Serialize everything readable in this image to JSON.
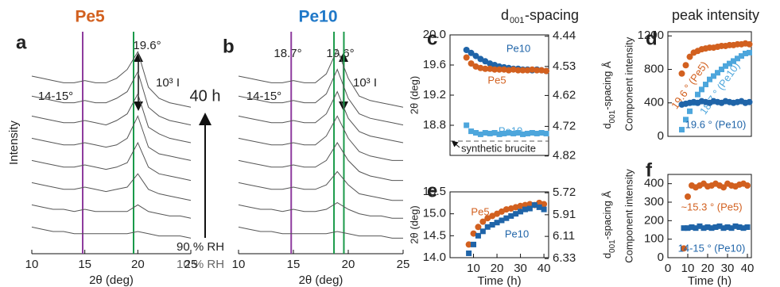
{
  "headers": {
    "d_main": "d",
    "d_sub": "001",
    "d_rest": "-spacing",
    "peak": "peak intensity"
  },
  "time_arrow": {
    "top": "40 h",
    "start": "90 % RH",
    "baseline": "10 % RH"
  },
  "chart_data": [
    {
      "type": "line",
      "panel_label": "a",
      "title": "Pe5",
      "title_color": "#d2601f",
      "xlabel": "2θ (deg)",
      "ylabel": "Intensity",
      "x": [
        10,
        11,
        12,
        13,
        14,
        15,
        16,
        17,
        18,
        19,
        20,
        21,
        22,
        23,
        24,
        25
      ],
      "xlim": [
        10,
        25
      ],
      "xticks": [
        10,
        15,
        20,
        25
      ],
      "ylim": [
        0,
        100
      ],
      "vlines": [
        {
          "x": 14.8,
          "color": "#8e3c9e"
        },
        {
          "x": 19.6,
          "color": "#1a9a4a"
        }
      ],
      "annotations": [
        "14-15°",
        "19.6°",
        "10³ I"
      ],
      "series": [
        {
          "color": "#555555",
          "values": [
            12,
            11,
            10,
            10,
            9,
            9,
            9,
            9,
            9,
            9,
            10,
            9,
            8,
            8,
            8,
            7
          ]
        },
        {
          "color": "#555555",
          "values": [
            22,
            21,
            20,
            20,
            19,
            20,
            19,
            19,
            19,
            19,
            22,
            19,
            18,
            17,
            17,
            16
          ]
        },
        {
          "color": "#555555",
          "values": [
            32,
            31,
            30,
            29,
            29,
            30,
            29,
            28,
            29,
            30,
            36,
            29,
            27,
            26,
            25,
            24
          ]
        },
        {
          "color": "#555555",
          "values": [
            42,
            41,
            40,
            39,
            39,
            40,
            39,
            38,
            39,
            41,
            50,
            39,
            36,
            35,
            34,
            33
          ]
        },
        {
          "color": "#555555",
          "values": [
            52,
            51,
            50,
            49,
            49,
            50,
            49,
            48,
            49,
            52,
            62,
            48,
            45,
            44,
            43,
            42
          ]
        },
        {
          "color": "#555555",
          "values": [
            62,
            61,
            60,
            59,
            59,
            60,
            59,
            58,
            60,
            63,
            72,
            57,
            54,
            52,
            51,
            50
          ]
        },
        {
          "color": "#555555",
          "values": [
            71,
            70,
            69,
            68,
            68,
            69,
            68,
            68,
            70,
            73,
            82,
            66,
            62,
            60,
            59,
            58
          ]
        },
        {
          "color": "#555555",
          "values": [
            80,
            79,
            78,
            77,
            77,
            78,
            77,
            77,
            79,
            83,
            91,
            75,
            70,
            68,
            67,
            66
          ]
        }
      ]
    },
    {
      "type": "line",
      "panel_label": "b",
      "title": "Pe10",
      "title_color": "#1f78c8",
      "xlabel": "2θ (deg)",
      "x": [
        10,
        11,
        12,
        13,
        14,
        15,
        16,
        17,
        18,
        19,
        20,
        21,
        22,
        23,
        24,
        25
      ],
      "xlim": [
        10,
        25
      ],
      "xticks": [
        10,
        15,
        20,
        25
      ],
      "ylim": [
        0,
        100
      ],
      "vlines": [
        {
          "x": 14.8,
          "color": "#8e3c9e"
        },
        {
          "x": 18.7,
          "color": "#1a9a4a"
        },
        {
          "x": 19.6,
          "color": "#1a9a4a"
        }
      ],
      "annotations": [
        "14-15°",
        "18.7°",
        "19.6°",
        "10³ I"
      ],
      "series": [
        {
          "color": "#555555",
          "values": [
            12,
            11,
            10,
            10,
            9,
            9,
            9,
            9,
            9,
            10,
            9,
            8,
            8,
            8,
            7,
            7
          ]
        },
        {
          "color": "#555555",
          "values": [
            22,
            21,
            20,
            20,
            19,
            20,
            19,
            19,
            20,
            23,
            20,
            18,
            17,
            17,
            16,
            16
          ]
        },
        {
          "color": "#555555",
          "values": [
            32,
            31,
            30,
            29,
            29,
            30,
            29,
            29,
            31,
            37,
            31,
            27,
            26,
            25,
            24,
            24
          ]
        },
        {
          "color": "#555555",
          "values": [
            42,
            41,
            40,
            39,
            39,
            40,
            39,
            39,
            42,
            50,
            42,
            37,
            35,
            34,
            33,
            33
          ]
        },
        {
          "color": "#555555",
          "values": [
            52,
            51,
            50,
            49,
            49,
            50,
            49,
            49,
            53,
            62,
            52,
            46,
            44,
            43,
            42,
            42
          ]
        },
        {
          "color": "#555555",
          "values": [
            62,
            61,
            60,
            59,
            59,
            60,
            59,
            59,
            63,
            73,
            61,
            55,
            53,
            52,
            51,
            50
          ]
        },
        {
          "color": "#555555",
          "values": [
            71,
            70,
            69,
            68,
            68,
            69,
            68,
            68,
            72,
            83,
            70,
            63,
            61,
            60,
            59,
            58
          ]
        },
        {
          "color": "#555555",
          "values": [
            80,
            79,
            78,
            77,
            77,
            78,
            77,
            77,
            81,
            92,
            79,
            71,
            69,
            68,
            67,
            66
          ]
        }
      ]
    },
    {
      "type": "scatter",
      "panel_label": "c",
      "ylabel": "2θ (deg)",
      "y2label": {
        "main": "d",
        "sub": "001",
        "rest": "-spacing Å"
      },
      "y2scale": "d-spacing",
      "xlim": [
        0,
        42
      ],
      "ylim": [
        18.4,
        20.0
      ],
      "yticks": [
        18.8,
        19.2,
        19.6,
        {
          "value": 20,
          "label": "20.0"
        }
      ],
      "y2ticks": [
        4.44,
        4.53,
        4.62,
        4.72,
        4.82
      ],
      "hline": {
        "value": 18.59,
        "label": "synthetic brucite"
      },
      "x": [
        7,
        9,
        11,
        13,
        15,
        17,
        19,
        21,
        23,
        25,
        27,
        29,
        31,
        33,
        35,
        37,
        39,
        41
      ],
      "series": [
        {
          "name": "Pe10",
          "color": "#1f64a8",
          "marker": "circle",
          "values": [
            19.8,
            19.76,
            19.72,
            19.68,
            19.65,
            19.62,
            19.6,
            19.58,
            19.57,
            19.56,
            19.55,
            19.55,
            19.54,
            19.54,
            19.53,
            19.54,
            19.53,
            19.52
          ]
        },
        {
          "name": "Pe5",
          "color": "#d2601f",
          "marker": "circle",
          "values": [
            19.7,
            19.62,
            19.58,
            19.56,
            19.55,
            19.55,
            19.54,
            19.54,
            19.54,
            19.53,
            19.54,
            19.53,
            19.53,
            19.53,
            19.54,
            19.53,
            19.53,
            19.52
          ]
        },
        {
          "name": "Pe10",
          "color": "#4da6dc",
          "marker": "square",
          "values": [
            18.8,
            18.72,
            18.7,
            18.68,
            18.7,
            18.69,
            18.7,
            18.68,
            18.69,
            18.7,
            18.69,
            18.7,
            18.68,
            18.69,
            18.7,
            18.69,
            18.7,
            18.69
          ]
        }
      ]
    },
    {
      "type": "scatter",
      "panel_label": "d",
      "ylabel": "Component intensity",
      "xlim": [
        0,
        42
      ],
      "ylim": [
        0,
        1250
      ],
      "yticks": [
        0,
        400,
        800,
        1200
      ],
      "x": [
        7,
        9,
        11,
        13,
        15,
        17,
        19,
        21,
        23,
        25,
        27,
        29,
        31,
        33,
        35,
        37,
        39,
        41
      ],
      "series": [
        {
          "name": "19.6 ° (Pe5)",
          "color": "#d2601f",
          "marker": "circle",
          "values": [
            750,
            850,
            950,
            1000,
            1020,
            1040,
            1050,
            1060,
            1060,
            1070,
            1080,
            1080,
            1090,
            1090,
            1100,
            1100,
            1110,
            1100
          ]
        },
        {
          "name": "18.7 ° (Pe10)",
          "color": "#4da6dc",
          "marker": "square",
          "values": [
            80,
            200,
            300,
            400,
            500,
            560,
            620,
            680,
            720,
            760,
            800,
            840,
            870,
            900,
            930,
            960,
            990,
            1000
          ]
        },
        {
          "name": "19.6 ° (Pe10)",
          "color": "#1f64a8",
          "marker": "circle",
          "values": [
            380,
            390,
            400,
            410,
            400,
            420,
            410,
            400,
            420,
            410,
            400,
            420,
            410,
            400,
            410,
            420,
            400,
            410
          ]
        }
      ]
    },
    {
      "type": "scatter",
      "panel_label": "e",
      "ylabel": "2θ (deg)",
      "xlabel": "Time (h)",
      "y2label": {
        "main": "d",
        "sub": "001",
        "rest": "-spacing Å"
      },
      "y2scale": "d-spacing",
      "xlim": [
        0,
        42
      ],
      "xticks": [
        10,
        20,
        30,
        40
      ],
      "ylim": [
        14.0,
        15.5
      ],
      "yticks": [
        {
          "value": 14,
          "label": "14.0"
        },
        14.5,
        {
          "value": 15,
          "label": "15.0"
        },
        15.5
      ],
      "y2ticks": [
        5.72,
        5.91,
        6.11,
        6.33
      ],
      "x": [
        8,
        10,
        12,
        14,
        16,
        18,
        20,
        22,
        24,
        26,
        28,
        30,
        32,
        34,
        36,
        38,
        40
      ],
      "series": [
        {
          "name": "Pe5",
          "color": "#d2601f",
          "marker": "circle",
          "values": [
            14.3,
            14.55,
            14.7,
            14.82,
            14.9,
            14.95,
            15.0,
            15.05,
            15.1,
            15.12,
            15.15,
            15.18,
            15.2,
            15.22,
            15.2,
            15.25,
            15.22
          ]
        },
        {
          "name": "Pe10",
          "color": "#1f64a8",
          "marker": "square",
          "values": [
            14.1,
            14.3,
            14.5,
            14.6,
            14.7,
            14.75,
            14.8,
            14.85,
            14.9,
            14.95,
            15.0,
            15.05,
            15.1,
            15.12,
            15.2,
            15.15,
            15.1
          ]
        }
      ]
    },
    {
      "type": "scatter",
      "panel_label": "f",
      "ylabel": "Component intensity",
      "xlabel": "Time (h)",
      "xlim": [
        0,
        42
      ],
      "xticks": [
        0,
        10,
        20,
        30,
        40
      ],
      "ylim": [
        0,
        450
      ],
      "yticks": [
        0,
        100,
        200,
        300,
        400
      ],
      "x": [
        8,
        10,
        12,
        14,
        16,
        18,
        20,
        22,
        24,
        26,
        28,
        30,
        32,
        34,
        36,
        38,
        40
      ],
      "series": [
        {
          "name": "~15.3 ° (Pe5)",
          "color": "#d2601f",
          "marker": "circle",
          "values": [
            50,
            330,
            390,
            380,
            390,
            400,
            385,
            390,
            400,
            390,
            380,
            400,
            390,
            385,
            395,
            400,
            390
          ]
        },
        {
          "name": "14-15 ° (Pe10)",
          "color": "#1f64a8",
          "marker": "square",
          "values": [
            160,
            160,
            165,
            160,
            170,
            160,
            165,
            160,
            165,
            170,
            160,
            165,
            160,
            170,
            165,
            160,
            165
          ]
        }
      ]
    }
  ]
}
